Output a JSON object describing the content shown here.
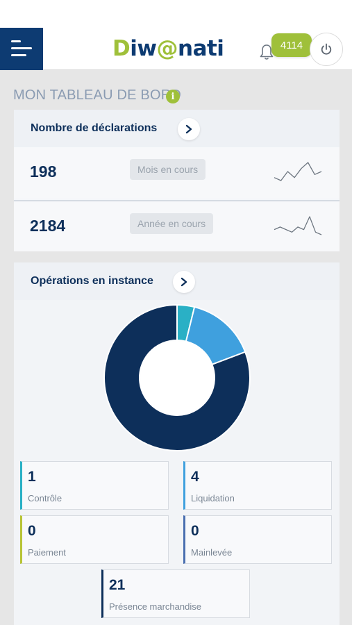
{
  "header": {
    "logo_prefix": "D",
    "logo_main": "iw",
    "logo_at": "@",
    "logo_suffix": "nati",
    "notification_count": "4114",
    "icons": {
      "menu": "menu-icon",
      "bell": "bell-icon",
      "power": "power-icon"
    },
    "colors": {
      "primary": "#0d3b72",
      "accent": "#9fc03a"
    }
  },
  "dashboard": {
    "title": "MON TABLEAU DE BORD",
    "info_icon_text": "i"
  },
  "declarations": {
    "title": "Nombre de déclarations",
    "rows": [
      {
        "value": "198",
        "period": "Mois en cours",
        "trend": [
          3,
          2,
          5,
          3,
          6,
          8,
          4,
          5
        ]
      },
      {
        "value": "2184",
        "period": "Année en cours",
        "trend": [
          5,
          6,
          5,
          4,
          6,
          5,
          10,
          4,
          3
        ]
      }
    ]
  },
  "operations": {
    "title": "Opérations en instance",
    "chart_data": {
      "type": "pie",
      "variant": "donut",
      "title": "",
      "categories": [
        "Contrôle",
        "Liquidation",
        "Paiement",
        "Mainlevée",
        "Présence marchandise"
      ],
      "values": [
        1,
        4,
        0,
        0,
        21
      ],
      "colors": [
        "#2ab0c5",
        "#3fa0de",
        "#b8c436",
        "#4a6fb0",
        "#0d2f5a"
      ]
    },
    "tiles": [
      {
        "value": "1",
        "label": "Contrôle",
        "color": "#2ab0c5"
      },
      {
        "value": "4",
        "label": "Liquidation",
        "color": "#3fa0de"
      },
      {
        "value": "0",
        "label": "Paiement",
        "color": "#b8c436"
      },
      {
        "value": "0",
        "label": "Mainlevée",
        "color": "#4a6fb0"
      },
      {
        "value": "21",
        "label": "Présence marchandise",
        "color": "#0d2f5a"
      }
    ]
  }
}
